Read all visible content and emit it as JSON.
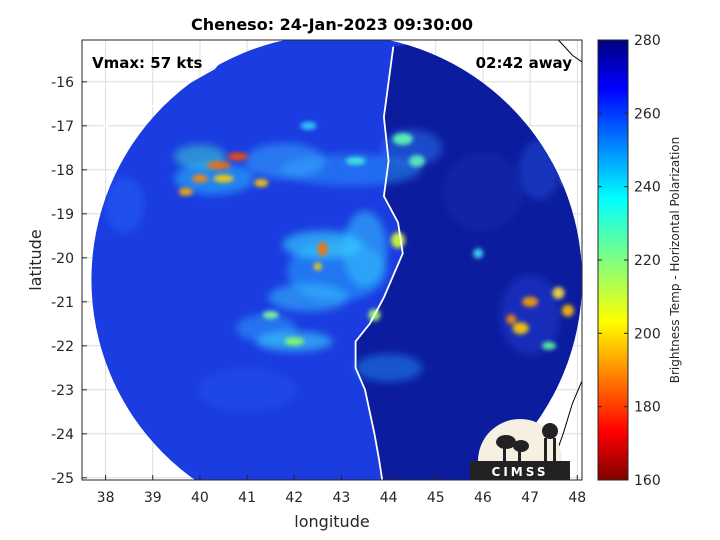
{
  "chart_data": {
    "type": "heatmap",
    "title": "Cheneso: 24-Jan-2023 09:30:00",
    "xlabel": "longitude",
    "ylabel": "latitude",
    "xlim": [
      37.5,
      48.1
    ],
    "ylim": [
      -25.05,
      -15.05
    ],
    "xticks": [
      38,
      39,
      40,
      41,
      42,
      43,
      44,
      45,
      46,
      47,
      48
    ],
    "yticks": [
      -16,
      -17,
      -18,
      -19,
      -20,
      -21,
      -22,
      -23,
      -24,
      -25
    ],
    "grid": true,
    "annotations": {
      "vmax": "Vmax: 57 kts",
      "time_away": "02:42 away"
    },
    "colorbar": {
      "label": "Brightness Temp - Horizontal Polarization",
      "range": [
        160,
        280
      ],
      "ticks": [
        160,
        180,
        200,
        220,
        240,
        260,
        280
      ],
      "colormap": "jet"
    },
    "storm_center": {
      "lon": 42.6,
      "lat": -20.15
    },
    "swath_center": {
      "lon": 42.9,
      "lat": -20.5
    },
    "swath_radius_deg": 5.2,
    "logo_text": "CIMSS"
  },
  "colors": {
    "background_warm": "#0a1d9c",
    "background_land": "#0a1680",
    "coastline": "#ffffff"
  }
}
